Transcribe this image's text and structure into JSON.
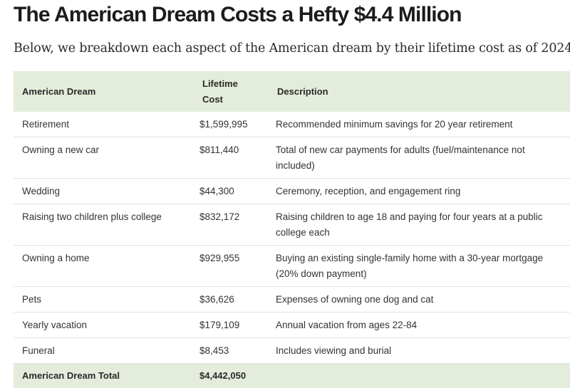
{
  "title": "The American Dream Costs a Hefty $4.4 Million",
  "intro": "Below, we breakdown each aspect of the American dream by their lifetime cost as of 2024:",
  "table": {
    "headers": {
      "dream": "American Dream",
      "cost_line1": "Lifetime",
      "cost_line2": "Cost",
      "description": "Description"
    },
    "rows": [
      {
        "dream": "Retirement",
        "cost": "$1,599,995",
        "description": "Recommended minimum savings for 20 year retirement"
      },
      {
        "dream": "Owning a new car",
        "cost": "$811,440",
        "description": "Total of new car payments for adults (fuel/maintenance not included)"
      },
      {
        "dream": "Wedding",
        "cost": "$44,300",
        "description": "Ceremony, reception, and engagement ring"
      },
      {
        "dream": "Raising two children plus college",
        "cost": "$832,172",
        "description": "Raising children to age 18 and paying for four years at a public college each"
      },
      {
        "dream": "Owning a home",
        "cost": "$929,955",
        "description": "Buying an existing single-family home with a 30-year mortgage (20% down payment)"
      },
      {
        "dream": "Pets",
        "cost": "$36,626",
        "description": "Expenses of owning one dog and cat"
      },
      {
        "dream": "Yearly vacation",
        "cost": "$179,109",
        "description": "Annual vacation from ages 22-84"
      },
      {
        "dream": "Funeral",
        "cost": "$8,453",
        "description": "Includes viewing and burial"
      }
    ],
    "total": {
      "dream": "American Dream Total",
      "cost": "$4,442,050"
    }
  },
  "colors": {
    "header_bg": "#e4eddb",
    "row_border": "#e2e2e2",
    "title_text": "#1c1c1c"
  }
}
